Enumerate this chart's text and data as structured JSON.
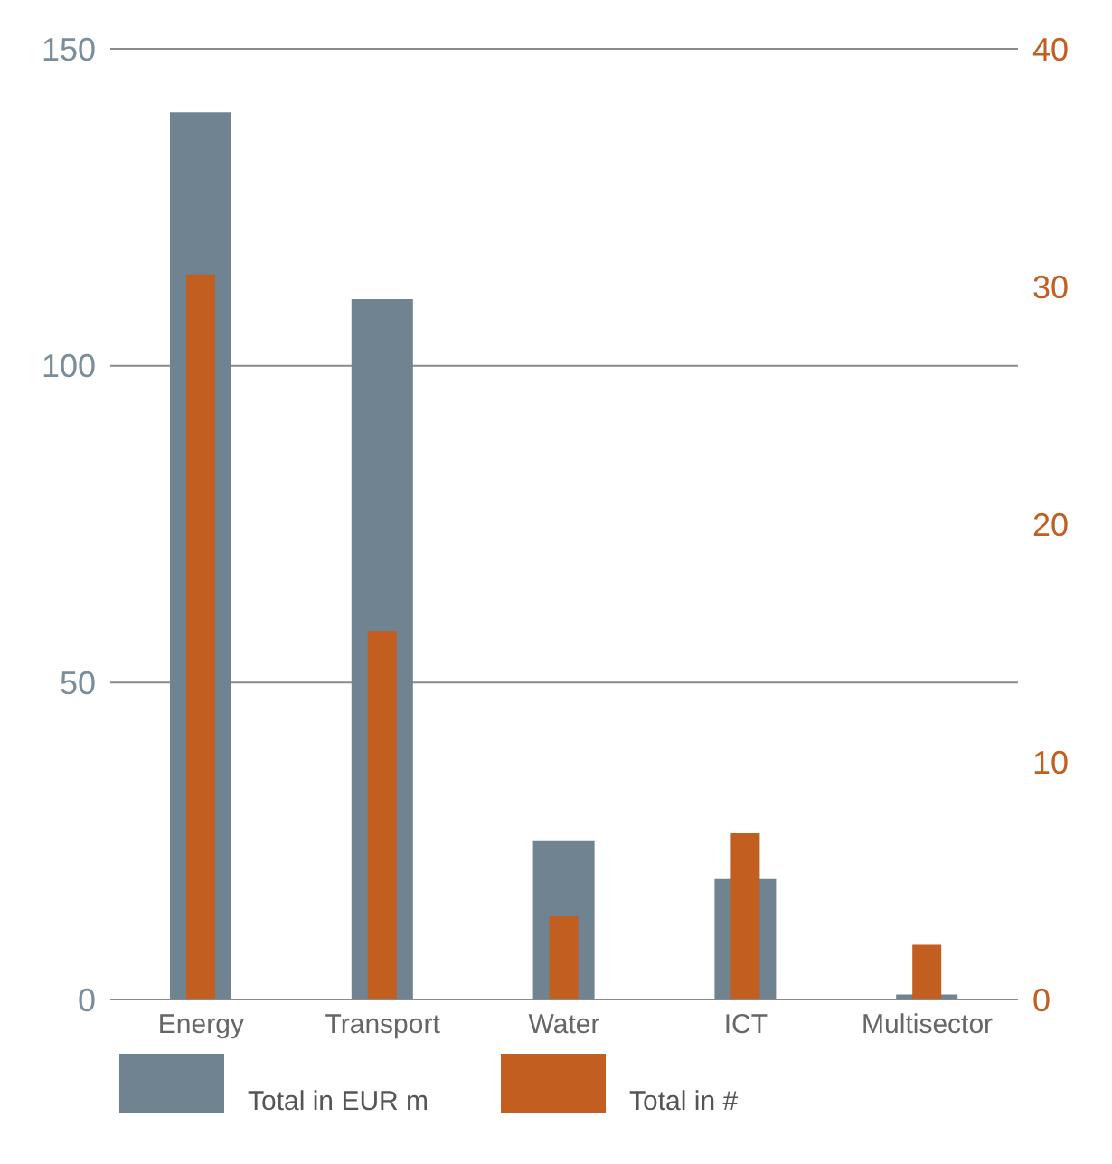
{
  "chart_data": {
    "type": "bar",
    "categories": [
      "Energy",
      "Transport",
      "Water",
      "ICT",
      "Multisector"
    ],
    "series": [
      {
        "name": "Total in EUR m",
        "color": "#6f8391",
        "values": [
          140,
          110.5,
          25,
          19,
          0.8
        ]
      },
      {
        "name": "Total in #",
        "color": "#c25e20",
        "values": [
          30.5,
          15.5,
          3.5,
          7,
          2.3
        ],
        "axis": "y2"
      }
    ],
    "ylim": [
      0,
      150
    ],
    "yticks": [
      0,
      50,
      100,
      150
    ],
    "y2lim": [
      0,
      40
    ],
    "y2ticks": [
      0,
      10,
      20,
      30,
      40
    ],
    "grid": "y",
    "legend": "bottom"
  }
}
